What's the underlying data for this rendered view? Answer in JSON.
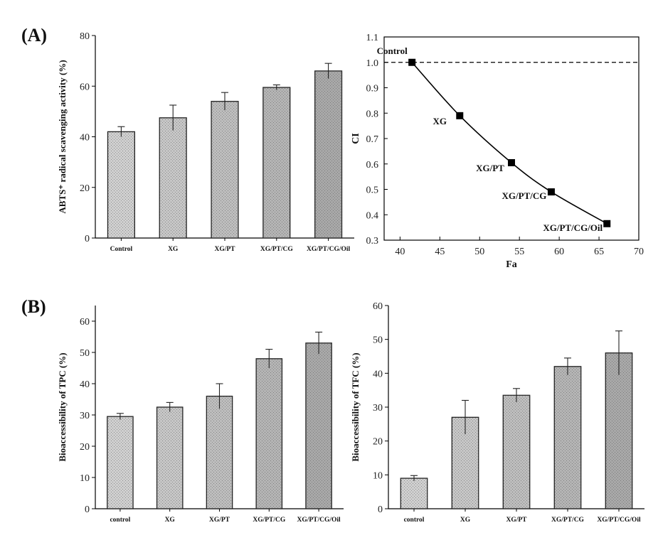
{
  "panels": {
    "a": "(A)",
    "b": "(B)"
  },
  "chart_data": [
    {
      "id": "abts",
      "type": "bar",
      "ylabel": "ABTS⁺ radical scavenging activity (%)",
      "xlabel": "",
      "categories": [
        "Control",
        "XG",
        "XG/PT",
        "XG/PT/CG",
        "XG/PT/CG/Oil"
      ],
      "values": [
        42,
        47.5,
        54,
        59.5,
        66
      ],
      "errors": [
        2,
        5,
        3.5,
        1,
        3
      ],
      "ylim": [
        0,
        80
      ],
      "yticks": [
        0,
        20,
        40,
        60,
        80
      ],
      "shades": [
        "#cfcfcf",
        "#c6c6c6",
        "#bdbdbd",
        "#b4b4b4",
        "#a8a8a8"
      ]
    },
    {
      "id": "ci",
      "type": "line",
      "xlabel": "Fa",
      "ylabel": "CI",
      "x": [
        41.5,
        47.5,
        54,
        59,
        66
      ],
      "y": [
        1.0,
        0.79,
        0.605,
        0.49,
        0.365
      ],
      "point_labels": [
        "Control",
        "XG",
        "XG/PT",
        "XG/PT/CG",
        "XG/PT/CG/Oil"
      ],
      "xlim": [
        38,
        70
      ],
      "ylim": [
        0.3,
        1.1
      ],
      "xticks": [
        40,
        45,
        50,
        55,
        60,
        65,
        70
      ],
      "yticks": [
        0.3,
        0.4,
        0.5,
        0.6,
        0.7,
        0.8,
        0.9,
        1.0,
        1.1
      ],
      "reference_line": 1.0
    },
    {
      "id": "tpc",
      "type": "bar",
      "ylabel": "Bioaccessibility of  TPC (%)",
      "xlabel": "",
      "categories": [
        "control",
        "XG",
        "XG/PT",
        "XG/PT/CG",
        "XG/PT/CG/Oil"
      ],
      "values": [
        29.5,
        32.5,
        36,
        48,
        53
      ],
      "errors": [
        1,
        1.5,
        4,
        3,
        3.5
      ],
      "ylim": [
        0,
        65
      ],
      "yticks": [
        0,
        10,
        20,
        30,
        40,
        50,
        60
      ],
      "shades": [
        "#cfcfcf",
        "#c6c6c6",
        "#bdbdbd",
        "#b4b4b4",
        "#a8a8a8"
      ]
    },
    {
      "id": "tfc",
      "type": "bar",
      "ylabel": "Bioaccessibility of  TFC (%)",
      "xlabel": "",
      "categories": [
        "control",
        "XG",
        "XG/PT",
        "XG/PT/CG",
        "XG/PT/CG/Oil"
      ],
      "values": [
        9,
        27,
        33.5,
        42,
        46
      ],
      "errors": [
        0.8,
        5,
        2,
        2.5,
        6.5
      ],
      "ylim": [
        0,
        60
      ],
      "yticks": [
        0,
        10,
        20,
        30,
        40,
        50,
        60
      ],
      "shades": [
        "#cfcfcf",
        "#c6c6c6",
        "#bdbdbd",
        "#b4b4b4",
        "#a8a8a8"
      ]
    }
  ]
}
